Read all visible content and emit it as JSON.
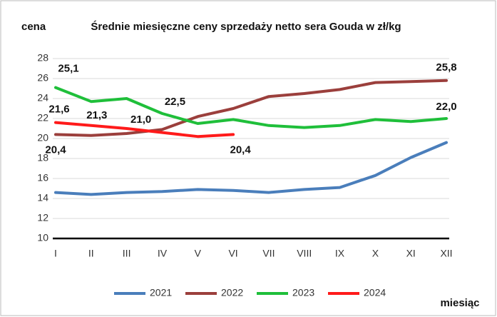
{
  "chart_data": {
    "type": "line",
    "title": "Średnie miesięczne ceny sprzedaży netto sera Gouda w zł/kg",
    "y_label": "cena",
    "x_label": "miesiąc",
    "categories": [
      "I",
      "II",
      "III",
      "IV",
      "V",
      "VI",
      "VII",
      "VIII",
      "IX",
      "X",
      "XI",
      "XII"
    ],
    "series": [
      {
        "name": "2021",
        "color": "#4a7ebb",
        "values": [
          14.6,
          14.4,
          14.6,
          14.7,
          14.9,
          14.8,
          14.6,
          14.9,
          15.1,
          16.3,
          18.1,
          19.6
        ]
      },
      {
        "name": "2022",
        "color": "#9b3f3c",
        "values": [
          20.4,
          20.3,
          20.5,
          20.9,
          22.2,
          23.0,
          24.2,
          24.5,
          24.9,
          25.6,
          25.7,
          25.8
        ],
        "value_labels": [
          "20,4",
          null,
          null,
          null,
          null,
          null,
          null,
          null,
          null,
          null,
          null,
          "25,8"
        ]
      },
      {
        "name": "2023",
        "color": "#1fbf3a",
        "values": [
          25.1,
          23.7,
          24.0,
          22.5,
          21.5,
          21.9,
          21.3,
          21.1,
          21.3,
          21.9,
          21.7,
          22.0
        ],
        "value_labels": [
          "25,1",
          null,
          null,
          "22,5",
          null,
          null,
          null,
          null,
          null,
          null,
          null,
          "22,0"
        ]
      },
      {
        "name": "2024",
        "color": "#ff1a1a",
        "values": [
          21.6,
          21.3,
          21.0,
          20.6,
          20.2,
          20.4,
          null,
          null,
          null,
          null,
          null,
          null
        ],
        "value_labels": [
          "21,6",
          "21,3",
          "21,0",
          null,
          null,
          "20,4",
          null,
          null,
          null,
          null,
          null,
          null
        ]
      }
    ],
    "ylim": [
      10,
      28
    ],
    "yticks": [
      10,
      12,
      14,
      16,
      18,
      20,
      22,
      24,
      26,
      28
    ],
    "grid": true,
    "legend": "bottom"
  }
}
